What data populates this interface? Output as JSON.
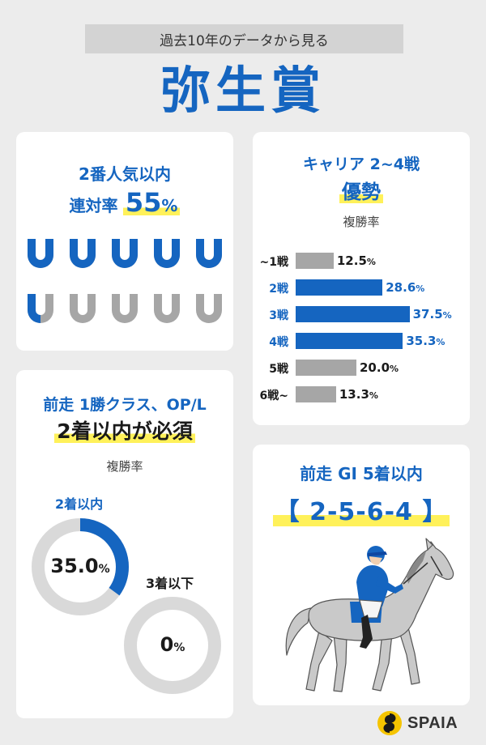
{
  "header": {
    "subtitle": "過去10年のデータから見る",
    "title": "弥生賞"
  },
  "colors": {
    "blue": "#1565c0",
    "gray": "#a6a6a6",
    "highlight": "#fff15a"
  },
  "popularity": {
    "line1": "2番人気以内",
    "line2_prefix": "連対率",
    "value": "55",
    "unit": "%",
    "icon": "horseshoe-icon",
    "ratio": 0.55
  },
  "career": {
    "line1": "キャリア 2~4戦",
    "line2": "優勢",
    "metric_label": "複勝率",
    "chart_data": {
      "type": "bar",
      "orientation": "horizontal",
      "categories": [
        "~1戦",
        "2戦",
        "3戦",
        "4戦",
        "5戦",
        "6戦~"
      ],
      "values": [
        12.5,
        28.6,
        37.5,
        35.3,
        20.0,
        13.3
      ],
      "value_labels": [
        "12.5",
        "28.6",
        "37.5",
        "35.3",
        "20.0",
        "13.3"
      ],
      "unit": "%",
      "highlighted": [
        false,
        true,
        true,
        true,
        false,
        false
      ],
      "xlim": [
        0,
        40
      ]
    }
  },
  "prev_class": {
    "line1": "前走 1勝クラス、OP/L",
    "line2": "2着以内が必須",
    "metric_label": "複勝率",
    "chart_data": {
      "type": "pie",
      "series": [
        {
          "name": "2着以内",
          "value": 35.0,
          "label": "35.0",
          "unit": "%"
        },
        {
          "name": "3着以下",
          "value": 0,
          "label": "0",
          "unit": "%"
        }
      ]
    }
  },
  "prev_g1": {
    "line1": "前走 GI 5着以内",
    "line2": "【 2-5-6-4 】",
    "icon": "jockey-horse-icon"
  },
  "footer": {
    "logo_text": "SPAIA",
    "logo_icon": "spaia-logo-icon"
  }
}
